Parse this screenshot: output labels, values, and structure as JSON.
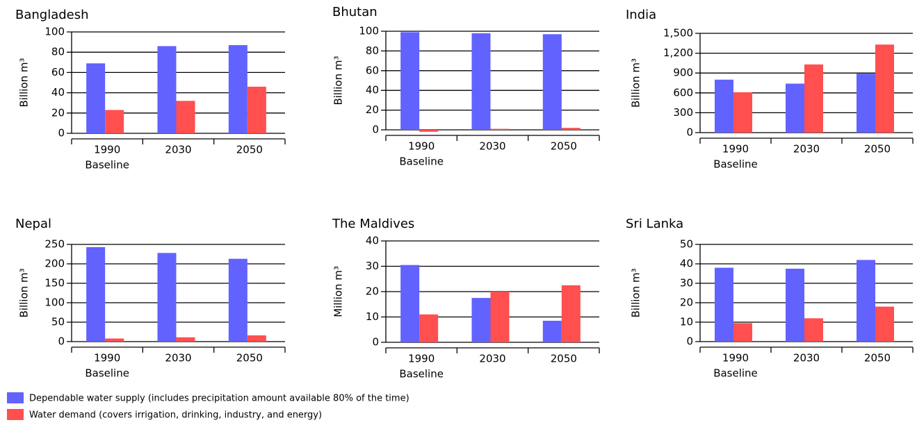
{
  "chart_data": [
    {
      "type": "bar",
      "title": "Bangladesh",
      "ylabel": "Billion m³",
      "categories": [
        "1990",
        "2030",
        "2050"
      ],
      "x_note": "Baseline",
      "series": [
        {
          "values": [
            69,
            86,
            87
          ]
        },
        {
          "values": [
            23,
            32,
            46
          ]
        }
      ],
      "ylim": [
        0,
        100
      ],
      "yticks": [
        0,
        20,
        40,
        60,
        80,
        100
      ],
      "grid": true
    },
    {
      "type": "bar",
      "title": "Bhutan",
      "ylabel": "Billion m³",
      "categories": [
        "1990",
        "2030",
        "2050"
      ],
      "x_note": "Baseline",
      "series": [
        {
          "values": [
            99,
            98,
            97
          ]
        },
        {
          "values": [
            -2,
            1,
            2
          ]
        }
      ],
      "ylim": [
        0,
        100
      ],
      "yticks": [
        0,
        20,
        40,
        60,
        80,
        100
      ],
      "grid": true
    },
    {
      "type": "bar",
      "title": "India",
      "ylabel": "Billion m³",
      "categories": [
        "1990",
        "2030",
        "2050"
      ],
      "x_note": "Baseline",
      "series": [
        {
          "values": [
            800,
            740,
            890
          ]
        },
        {
          "values": [
            610,
            1030,
            1330
          ]
        }
      ],
      "ylim": [
        0,
        1500
      ],
      "yticks": [
        0,
        300,
        600,
        900,
        {
          "value": 1200,
          "label": "1,200"
        },
        {
          "value": 1500,
          "label": "1,500"
        }
      ],
      "grid": true
    },
    {
      "type": "bar",
      "title": "Nepal",
      "ylabel": "Billion m³",
      "categories": [
        "1990",
        "2030",
        "2050"
      ],
      "x_note": "Baseline",
      "series": [
        {
          "values": [
            243,
            228,
            213
          ]
        },
        {
          "values": [
            8,
            11,
            16
          ]
        }
      ],
      "ylim": [
        0,
        250
      ],
      "yticks": [
        0,
        50,
        100,
        150,
        200,
        250
      ],
      "grid": true
    },
    {
      "type": "bar",
      "title": "The Maldives",
      "ylabel": "Million m³",
      "categories": [
        "1990",
        "2030",
        "2050"
      ],
      "x_note": "Baseline",
      "series": [
        {
          "values": [
            30.5,
            17.5,
            8.5
          ]
        },
        {
          "values": [
            11,
            20,
            22.5
          ]
        }
      ],
      "ylim": [
        0,
        40
      ],
      "yticks": [
        0,
        10,
        20,
        30,
        40
      ],
      "grid": true
    },
    {
      "type": "bar",
      "title": "Sri Lanka",
      "ylabel": "Billion m³",
      "categories": [
        "1990",
        "2030",
        "2050"
      ],
      "x_note": "Baseline",
      "series": [
        {
          "values": [
            38,
            37.5,
            42
          ]
        },
        {
          "values": [
            9.5,
            12,
            18
          ]
        }
      ],
      "ylim": [
        0,
        50
      ],
      "yticks": [
        0,
        10,
        20,
        30,
        40,
        50
      ],
      "grid": true
    }
  ],
  "legend": [
    {
      "name": "Dependable water supply (includes precipitation amount available 80% of the time)",
      "color": "#6262ff"
    },
    {
      "name": "Water demand (covers irrigation, drinking, industry, and energy)",
      "color": "#ff4f4f"
    }
  ]
}
